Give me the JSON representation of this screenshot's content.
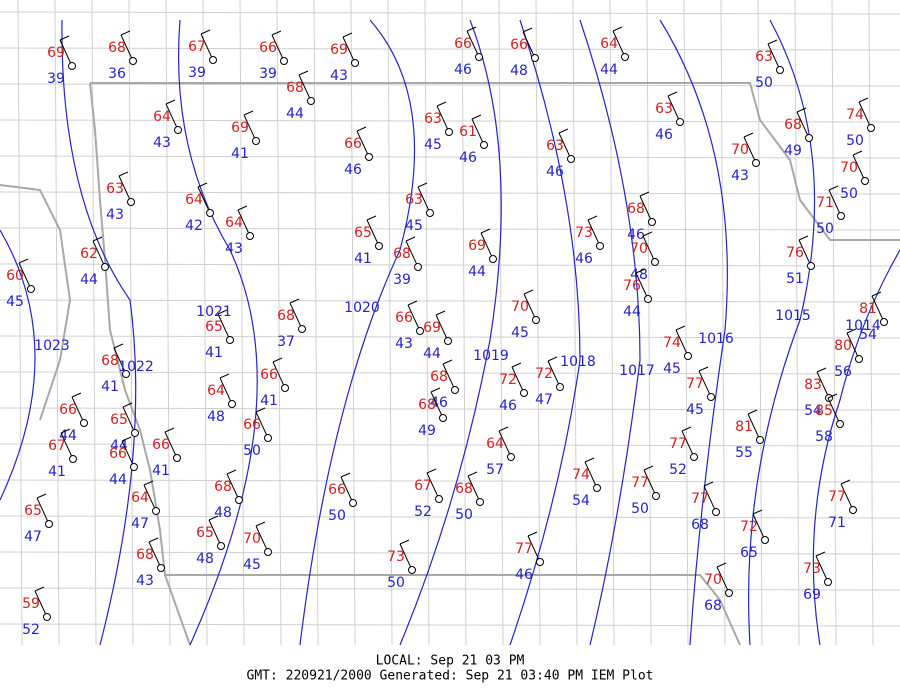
{
  "stations": [
    {
      "temp": 69,
      "dewpoint": 39
    },
    {
      "temp": 68,
      "dewpoint": 36
    },
    {
      "temp": 67,
      "dewpoint": 39
    },
    {
      "temp": 66,
      "dewpoint": 39
    },
    {
      "temp": 69,
      "dewpoint": 43
    },
    {
      "temp": 66,
      "dewpoint": 46
    },
    {
      "temp": 66,
      "dewpoint": 48
    },
    {
      "temp": 64,
      "dewpoint": 44
    },
    {
      "temp": 63,
      "dewpoint": 50
    },
    {
      "temp": 68,
      "dewpoint": 44
    },
    {
      "temp": 64,
      "dewpoint": 43
    },
    {
      "temp": 69,
      "dewpoint": 41
    },
    {
      "temp": 66,
      "dewpoint": 46
    },
    {
      "temp": 63,
      "dewpoint": 45
    },
    {
      "temp": 61,
      "dewpoint": 46
    },
    {
      "temp": 63,
      "dewpoint": 46
    },
    {
      "temp": 63,
      "dewpoint": 46
    },
    {
      "temp": 70,
      "dewpoint": 43
    },
    {
      "temp": 68,
      "dewpoint": 49
    },
    {
      "temp": 74,
      "dewpoint": 50
    },
    {
      "temp": 70,
      "dewpoint": 50
    },
    {
      "temp": 71,
      "dewpoint": 50
    },
    {
      "temp": 63,
      "dewpoint": 43
    },
    {
      "temp": 64,
      "dewpoint": 42
    },
    {
      "temp": 64,
      "dewpoint": 43
    },
    {
      "temp": 65,
      "dewpoint": 41
    },
    {
      "temp": 63,
      "dewpoint": 45
    },
    {
      "temp": 68,
      "dewpoint": 39
    },
    {
      "temp": 69,
      "dewpoint": 44
    },
    {
      "temp": 73,
      "dewpoint": 46
    },
    {
      "temp": 68,
      "dewpoint": 46
    },
    {
      "temp": 70,
      "dewpoint": 48
    },
    {
      "temp": 76,
      "dewpoint": 44
    },
    {
      "temp": 76,
      "dewpoint": 51
    },
    {
      "temp": 81,
      "dewpoint": 54
    },
    {
      "temp": 62,
      "dewpoint": 44
    },
    {
      "temp": 60,
      "dewpoint": 45
    },
    {
      "temp": 65,
      "dewpoint": 41
    },
    {
      "temp": 68,
      "dewpoint": 37
    },
    {
      "temp": 66,
      "dewpoint": 43
    },
    {
      "temp": 69,
      "dewpoint": 44
    },
    {
      "temp": 70,
      "dewpoint": 45
    },
    {
      "temp": 72,
      "dewpoint": 46
    },
    {
      "temp": 72,
      "dewpoint": 47
    },
    {
      "temp": 74,
      "dewpoint": 45
    },
    {
      "temp": 77,
      "dewpoint": 45
    },
    {
      "temp": 80,
      "dewpoint": 56
    },
    {
      "temp": 83,
      "dewpoint": 54
    },
    {
      "temp": 85,
      "dewpoint": 58
    },
    {
      "temp": 68,
      "dewpoint": 41
    },
    {
      "temp": 64,
      "dewpoint": 48
    },
    {
      "temp": 66,
      "dewpoint": 41
    },
    {
      "temp": 66,
      "dewpoint": 50
    },
    {
      "temp": 68,
      "dewpoint": 46
    },
    {
      "temp": 68,
      "dewpoint": 49
    },
    {
      "temp": 66,
      "dewpoint": 44
    },
    {
      "temp": 65,
      "dewpoint": 44
    },
    {
      "temp": 67,
      "dewpoint": 41
    },
    {
      "temp": 66,
      "dewpoint": 41
    },
    {
      "temp": 66,
      "dewpoint": 44
    },
    {
      "temp": 64,
      "dewpoint": 57
    },
    {
      "temp": 77,
      "dewpoint": 52
    },
    {
      "temp": 81,
      "dewpoint": 55
    },
    {
      "temp": 68,
      "dewpoint": 48
    },
    {
      "temp": 66,
      "dewpoint": 50
    },
    {
      "temp": 67,
      "dewpoint": 52
    },
    {
      "temp": 68,
      "dewpoint": 50
    },
    {
      "temp": 74,
      "dewpoint": 54
    },
    {
      "temp": 77,
      "dewpoint": 50
    },
    {
      "temp": 77,
      "dewpoint": 68
    },
    {
      "temp": 77,
      "dewpoint": 71
    },
    {
      "temp": 64,
      "dewpoint": 47
    },
    {
      "temp": 65,
      "dewpoint": 47
    },
    {
      "temp": 65,
      "dewpoint": 48
    },
    {
      "temp": 70,
      "dewpoint": 45
    },
    {
      "temp": 72,
      "dewpoint": 65
    },
    {
      "temp": 68,
      "dewpoint": 43
    },
    {
      "temp": 73,
      "dewpoint": 50
    },
    {
      "temp": 77,
      "dewpoint": 46
    },
    {
      "temp": 73,
      "dewpoint": 69
    },
    {
      "temp": 70,
      "dewpoint": 68
    },
    {
      "temp": 59,
      "dewpoint": 52
    }
  ],
  "isobars": [
    1023,
    1022,
    1021,
    1020,
    1019,
    1018,
    1017,
    1016,
    1015,
    1014
  ],
  "footer": {
    "local": "LOCAL: Sep 21 03 PM",
    "gmt": "GMT: 220921/2000 Generated: Sep 21 03:40 PM IEM Plot"
  }
}
